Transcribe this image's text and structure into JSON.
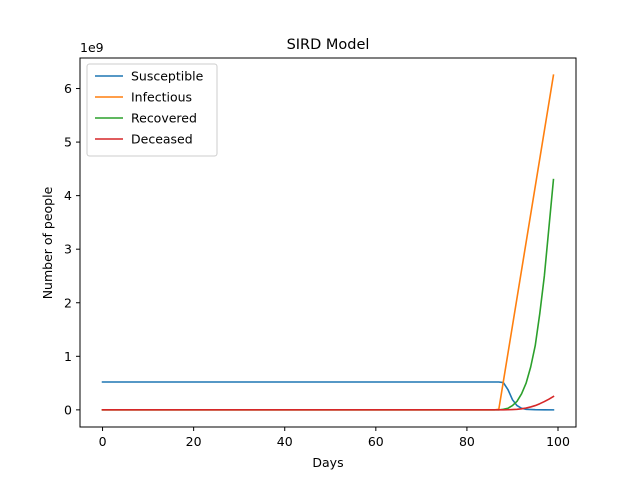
{
  "chart_data": {
    "type": "line",
    "title": "SIRD Model",
    "xlabel": "Days",
    "ylabel": "Number of people",
    "y_offset_label": "1e9",
    "y_scale_factor": 1000000000,
    "xlim": [
      -4.95,
      103.95
    ],
    "ylim": [
      -320000000,
      6570000000
    ],
    "x_ticks": [
      0,
      20,
      40,
      60,
      80,
      100
    ],
    "x_tick_labels": [
      "0",
      "20",
      "40",
      "60",
      "80",
      "100"
    ],
    "y_ticks": [
      0,
      1000000000,
      2000000000,
      3000000000,
      4000000000,
      5000000000,
      6000000000
    ],
    "y_tick_labels": [
      "0",
      "1",
      "2",
      "3",
      "4",
      "5",
      "6"
    ],
    "grid": false,
    "legend_position": "top-left",
    "series": [
      {
        "name": "Susceptible",
        "color": "#1f77b4",
        "x": [
          0,
          10,
          20,
          30,
          40,
          50,
          60,
          70,
          80,
          87,
          88,
          89,
          90,
          91,
          92,
          93,
          95,
          97,
          99
        ],
        "y": [
          520000000,
          520000000,
          520000000,
          520000000,
          520000000,
          520000000,
          520000000,
          520000000,
          520000000,
          520000000,
          510000000,
          380000000,
          190000000,
          80000000,
          30000000,
          10000000,
          3000000,
          1000000,
          0
        ]
      },
      {
        "name": "Infectious",
        "color": "#ff7f0e",
        "x": [
          0,
          10,
          20,
          30,
          40,
          50,
          60,
          70,
          80,
          86,
          87,
          99
        ],
        "y": [
          0,
          0,
          0,
          0,
          0,
          0,
          0,
          0,
          0,
          0,
          10000000,
          6250000000
        ]
      },
      {
        "name": "Recovered",
        "color": "#2ca02c",
        "x": [
          0,
          10,
          20,
          30,
          40,
          50,
          60,
          70,
          80,
          87,
          88,
          89,
          90,
          91,
          92,
          93,
          94,
          95,
          96,
          97,
          98,
          99
        ],
        "y": [
          0,
          0,
          0,
          0,
          0,
          0,
          0,
          0,
          0,
          0,
          10000000,
          30000000,
          80000000,
          160000000,
          300000000,
          500000000,
          800000000,
          1200000000,
          1800000000,
          2500000000,
          3400000000,
          4300000000
        ]
      },
      {
        "name": "Deceased",
        "color": "#d62728",
        "x": [
          0,
          10,
          20,
          30,
          40,
          50,
          60,
          70,
          80,
          87,
          88,
          89,
          90,
          91,
          92,
          93,
          94,
          95,
          96,
          97,
          98,
          99
        ],
        "y": [
          0,
          0,
          0,
          0,
          0,
          0,
          0,
          0,
          0,
          0,
          1000000,
          2000000,
          5000000,
          10000000,
          20000000,
          35000000,
          55000000,
          80000000,
          115000000,
          155000000,
          200000000,
          250000000
        ]
      }
    ]
  }
}
